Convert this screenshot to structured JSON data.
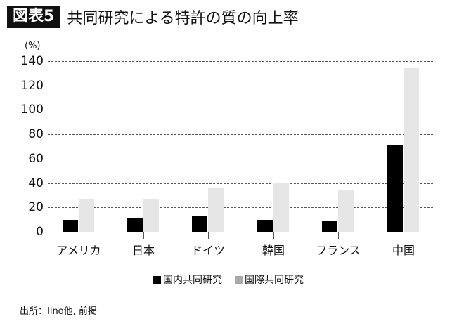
{
  "header": {
    "figure_label": "図表5",
    "title": "共同研究による特許の質の向上率"
  },
  "source": "出所：Iino他, 前掲",
  "colors": {
    "domestic": "#000000",
    "international": "#e6e6e6",
    "grid": "#555555"
  },
  "chart_data": {
    "type": "bar",
    "title": "共同研究による特許の質の向上率",
    "ylabel": "(%)",
    "xlabel": "",
    "ylim": [
      0,
      140
    ],
    "yticks": [
      "0",
      "20",
      "40",
      "60",
      "80",
      "100",
      "120",
      "140"
    ],
    "grid": true,
    "legend_position": "bottom",
    "categories": [
      "アメリカ",
      "日本",
      "ドイツ",
      "韓国",
      "フランス",
      "中国"
    ],
    "series": [
      {
        "name": "国内共同研究",
        "values": [
          10,
          11,
          13,
          10,
          9,
          71
        ]
      },
      {
        "name": "国際共同研究",
        "values": [
          27,
          27,
          36,
          40,
          34,
          134
        ]
      }
    ]
  }
}
